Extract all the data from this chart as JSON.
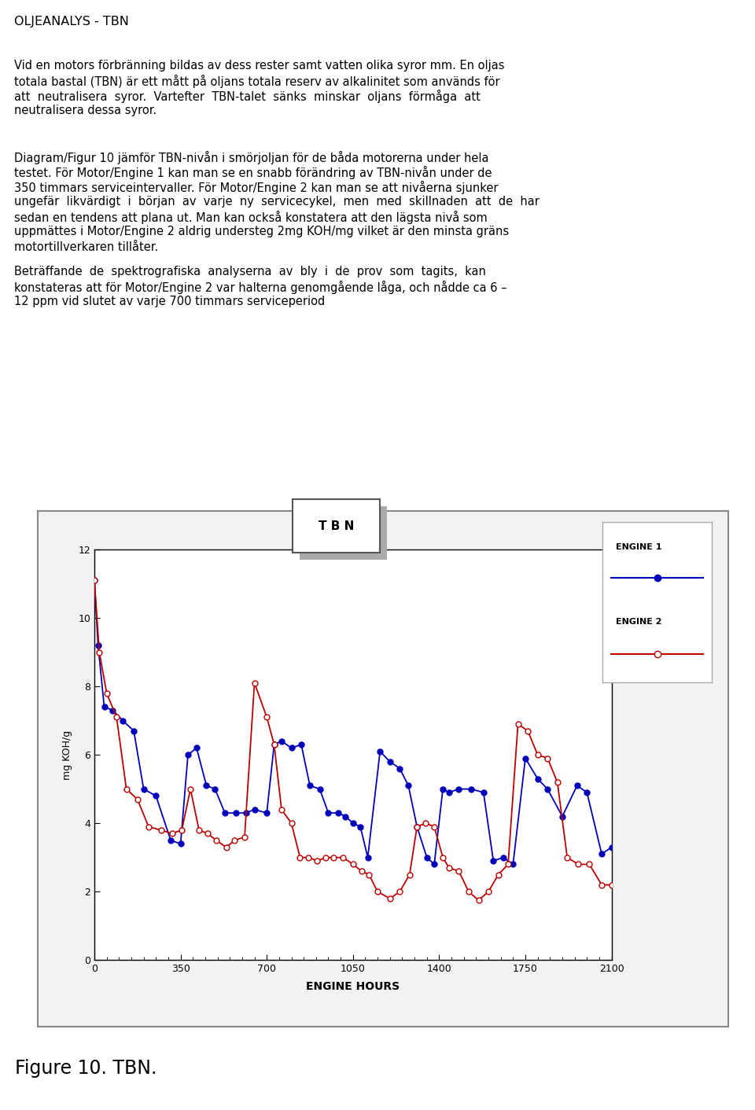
{
  "title": "TBN",
  "xlabel": "ENGINE HOURS",
  "ylabel": "mg KOH/g",
  "xlim": [
    0,
    2100
  ],
  "ylim": [
    0,
    12
  ],
  "xticks": [
    0,
    350,
    700,
    1050,
    1400,
    1750,
    2100
  ],
  "yticks": [
    0,
    2,
    4,
    6,
    8,
    10,
    12
  ],
  "engine1_x": [
    0,
    15,
    40,
    75,
    115,
    160,
    200,
    250,
    310,
    350,
    380,
    415,
    455,
    490,
    530,
    575,
    615,
    650,
    700,
    730,
    760,
    800,
    840,
    875,
    915,
    950,
    990,
    1020,
    1050,
    1080,
    1110,
    1160,
    1200,
    1240,
    1275,
    1310,
    1350,
    1380,
    1415,
    1440,
    1480,
    1530,
    1580,
    1620,
    1660,
    1700,
    1750,
    1800,
    1840,
    1900,
    1960,
    2000,
    2060,
    2100
  ],
  "engine1_y": [
    11.1,
    9.2,
    7.4,
    7.3,
    7.0,
    6.7,
    5.0,
    4.8,
    3.5,
    3.4,
    6.0,
    6.2,
    5.1,
    5.0,
    4.3,
    4.3,
    4.3,
    4.4,
    4.3,
    6.3,
    6.4,
    6.2,
    6.3,
    5.1,
    5.0,
    4.3,
    4.3,
    4.2,
    4.0,
    3.9,
    3.0,
    6.1,
    5.8,
    5.6,
    5.1,
    3.9,
    3.0,
    2.8,
    5.0,
    4.9,
    5.0,
    5.0,
    4.9,
    2.9,
    3.0,
    2.8,
    5.9,
    5.3,
    5.0,
    4.2,
    5.1,
    4.9,
    3.1,
    3.3
  ],
  "engine2_x": [
    0,
    20,
    50,
    90,
    130,
    175,
    220,
    270,
    315,
    355,
    390,
    425,
    460,
    495,
    535,
    570,
    610,
    650,
    700,
    730,
    760,
    800,
    835,
    870,
    905,
    940,
    970,
    1010,
    1050,
    1085,
    1115,
    1150,
    1200,
    1240,
    1280,
    1310,
    1345,
    1380,
    1415,
    1440,
    1480,
    1520,
    1560,
    1600,
    1640,
    1680,
    1720,
    1760,
    1800,
    1840,
    1880,
    1920,
    1965,
    2010,
    2060,
    2100
  ],
  "engine2_y": [
    11.1,
    9.0,
    7.8,
    7.1,
    5.0,
    4.7,
    3.9,
    3.8,
    3.7,
    3.8,
    5.0,
    3.8,
    3.7,
    3.5,
    3.3,
    3.5,
    3.6,
    8.1,
    7.1,
    6.3,
    4.4,
    4.0,
    3.0,
    3.0,
    2.9,
    3.0,
    3.0,
    3.0,
    2.8,
    2.6,
    2.5,
    2.0,
    1.8,
    2.0,
    2.5,
    3.9,
    4.0,
    3.9,
    3.0,
    2.7,
    2.6,
    2.0,
    1.75,
    2.0,
    2.5,
    2.8,
    6.9,
    6.7,
    6.0,
    5.9,
    5.2,
    3.0,
    2.8,
    2.8,
    2.2,
    2.2
  ],
  "engine1_color": "#0000bb",
  "engine2_color": "#bb0000",
  "legend_engine1": "ENGINE 1",
  "legend_engine2": "ENGINE 2",
  "page_title": "OLJEANALYS - TBN",
  "figure_caption": "Figure 10. TBN.",
  "chart_bg_color": "#f2f2f2",
  "chart_border_color": "#888888"
}
